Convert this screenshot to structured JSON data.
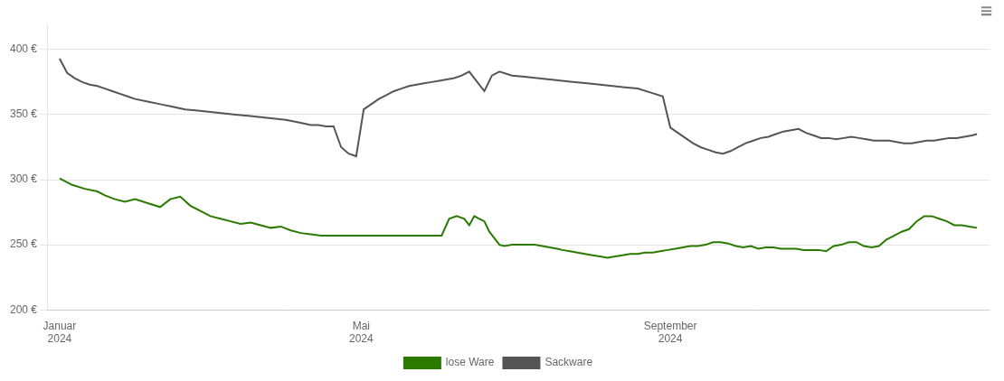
{
  "chart_data": {
    "type": "line",
    "annotations": [
      "≡"
    ],
    "xlim": [
      -5,
      370
    ],
    "xticks": [
      {
        "value": 0,
        "label": "Januar\n2024"
      },
      {
        "value": 120,
        "label": "Mai\n2024"
      },
      {
        "value": 243,
        "label": "September\n2024"
      }
    ],
    "ylim": [
      200,
      420
    ],
    "yticks": [
      {
        "value": 200,
        "label": "200 €"
      },
      {
        "value": 250,
        "label": "250 €"
      },
      {
        "value": 300,
        "label": "300 €"
      },
      {
        "value": 350,
        "label": "350 €"
      },
      {
        "value": 400,
        "label": "400 €"
      }
    ],
    "grid": "y",
    "legend": "bottom",
    "series": [
      {
        "name": "lose Ware",
        "color": "#2a7a00",
        "x": [
          0,
          5,
          10,
          15,
          18,
          22,
          26,
          30,
          35,
          40,
          44,
          48,
          52,
          56,
          60,
          64,
          68,
          72,
          76,
          80,
          84,
          88,
          92,
          96,
          100,
          104,
          108,
          112,
          116,
          120,
          124,
          128,
          132,
          136,
          140,
          144,
          148,
          152,
          155,
          158,
          161,
          163,
          165,
          167,
          169,
          171,
          173,
          175,
          177,
          180,
          183,
          186,
          189,
          192,
          195,
          198,
          200,
          203,
          206,
          209,
          212,
          215,
          218,
          221,
          224,
          227,
          230,
          233,
          236,
          239,
          242,
          245,
          248,
          251,
          254,
          257,
          260,
          263,
          266,
          269,
          272,
          275,
          278,
          281,
          284,
          287,
          290,
          293,
          296,
          299,
          302,
          305,
          308,
          311,
          314,
          317,
          320,
          323,
          326,
          329,
          332,
          335,
          338,
          341,
          344,
          347,
          350,
          353,
          356,
          359,
          362,
          365
        ],
        "values": [
          301,
          296,
          293,
          291,
          288,
          285,
          283,
          285,
          282,
          279,
          285,
          287,
          280,
          276,
          272,
          270,
          268,
          266,
          267,
          265,
          263,
          264,
          261,
          259,
          258,
          257,
          257,
          257,
          257,
          257,
          257,
          257,
          257,
          257,
          257,
          257,
          257,
          257,
          270,
          272,
          270,
          265,
          272,
          270,
          268,
          260,
          255,
          250,
          249,
          250,
          250,
          250,
          250,
          249,
          248,
          247,
          246,
          245,
          244,
          243,
          242,
          241,
          240,
          241,
          242,
          243,
          243,
          244,
          244,
          245,
          246,
          247,
          248,
          249,
          249,
          250,
          252,
          252,
          251,
          249,
          248,
          249,
          247,
          248,
          248,
          247,
          247,
          247,
          246,
          246,
          246,
          245,
          249,
          250,
          252,
          252,
          249,
          248,
          249,
          254,
          257,
          260,
          262,
          268,
          272,
          272,
          270,
          268,
          265,
          265,
          264,
          263
        ]
      },
      {
        "name": "Sackware",
        "color": "#555555",
        "x": [
          0,
          3,
          6,
          9,
          12,
          15,
          18,
          21,
          24,
          27,
          30,
          35,
          40,
          45,
          50,
          55,
          60,
          65,
          70,
          75,
          80,
          85,
          90,
          95,
          100,
          103,
          106,
          109,
          112,
          115,
          118,
          121,
          124,
          127,
          130,
          133,
          136,
          139,
          142,
          145,
          148,
          151,
          154,
          157,
          160,
          163,
          165,
          167,
          169,
          172,
          175,
          180,
          185,
          190,
          195,
          200,
          205,
          210,
          215,
          220,
          225,
          230,
          235,
          240,
          243,
          246,
          249,
          252,
          255,
          258,
          261,
          264,
          267,
          270,
          273,
          276,
          279,
          282,
          285,
          288,
          291,
          294,
          297,
          300,
          303,
          306,
          309,
          312,
          315,
          318,
          321,
          324,
          327,
          330,
          333,
          336,
          339,
          342,
          345,
          348,
          351,
          354,
          357,
          360,
          363,
          365
        ],
        "values": [
          393,
          382,
          378,
          375,
          373,
          372,
          370,
          368,
          366,
          364,
          362,
          360,
          358,
          356,
          354,
          353,
          352,
          351,
          350,
          349,
          348,
          347,
          346,
          344,
          342,
          342,
          341,
          341,
          325,
          320,
          318,
          354,
          358,
          362,
          365,
          368,
          370,
          372,
          373,
          374,
          375,
          376,
          377,
          378,
          380,
          383,
          378,
          373,
          368,
          380,
          383,
          380,
          379,
          378,
          377,
          376,
          375,
          374,
          373,
          372,
          371,
          370,
          367,
          364,
          340,
          336,
          332,
          328,
          325,
          323,
          321,
          320,
          322,
          325,
          328,
          330,
          332,
          333,
          335,
          337,
          338,
          339,
          336,
          334,
          332,
          332,
          331,
          332,
          333,
          332,
          331,
          330,
          330,
          330,
          329,
          328,
          328,
          329,
          330,
          330,
          331,
          332,
          332,
          333,
          334,
          335
        ]
      }
    ]
  }
}
